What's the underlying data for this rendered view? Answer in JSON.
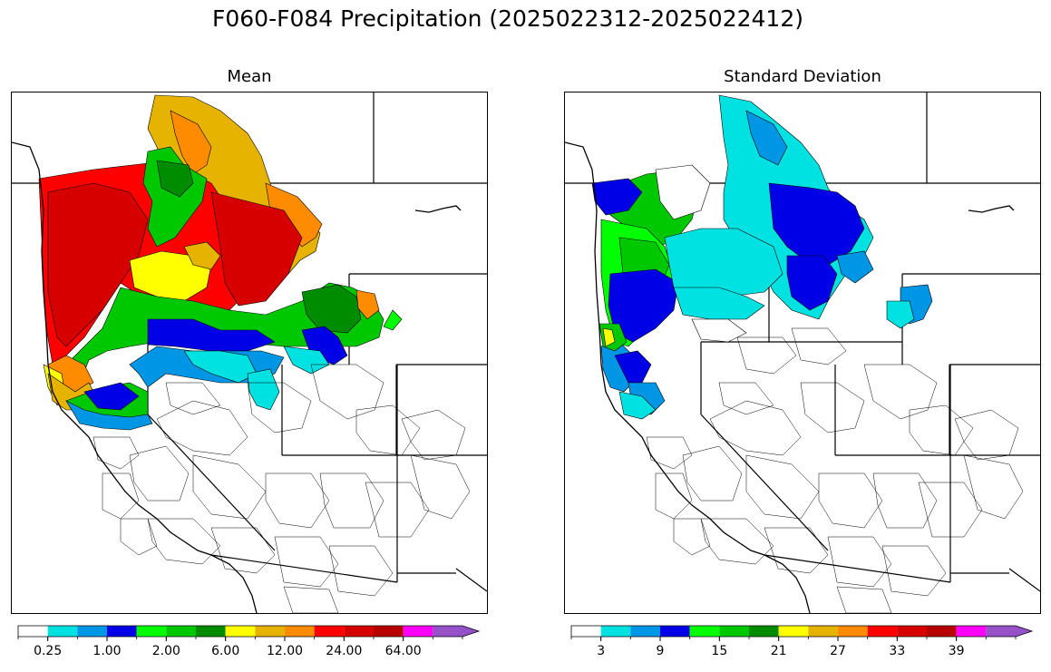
{
  "title": "F060-F084 Precipitation (2025022312-2025022412)",
  "panels": [
    {
      "title": "Mean",
      "colorbar": {
        "colors": [
          "#ffffff",
          "#00e1e1",
          "#0096e6",
          "#0000e6",
          "#00ff00",
          "#00c800",
          "#008c00",
          "#ffff00",
          "#e6b400",
          "#ff8c00",
          "#ff0000",
          "#d70000",
          "#b90000",
          "#ff00ff",
          "#9650c8"
        ],
        "tick_labels": [
          "0.25",
          "1.00",
          "2.00",
          "6.00",
          "12.00",
          "24.00",
          "64.00"
        ],
        "extend": "max"
      }
    },
    {
      "title": "Standard Deviation",
      "colorbar": {
        "colors": [
          "#ffffff",
          "#00e1e1",
          "#0096e6",
          "#0000e6",
          "#00ff00",
          "#00c800",
          "#008c00",
          "#ffff00",
          "#e6b400",
          "#ff8c00",
          "#ff0000",
          "#d70000",
          "#b90000",
          "#ff00ff",
          "#9650c8"
        ],
        "tick_labels": [
          "3",
          "9",
          "15",
          "21",
          "27",
          "33",
          "39"
        ],
        "extend": "max"
      }
    }
  ]
}
